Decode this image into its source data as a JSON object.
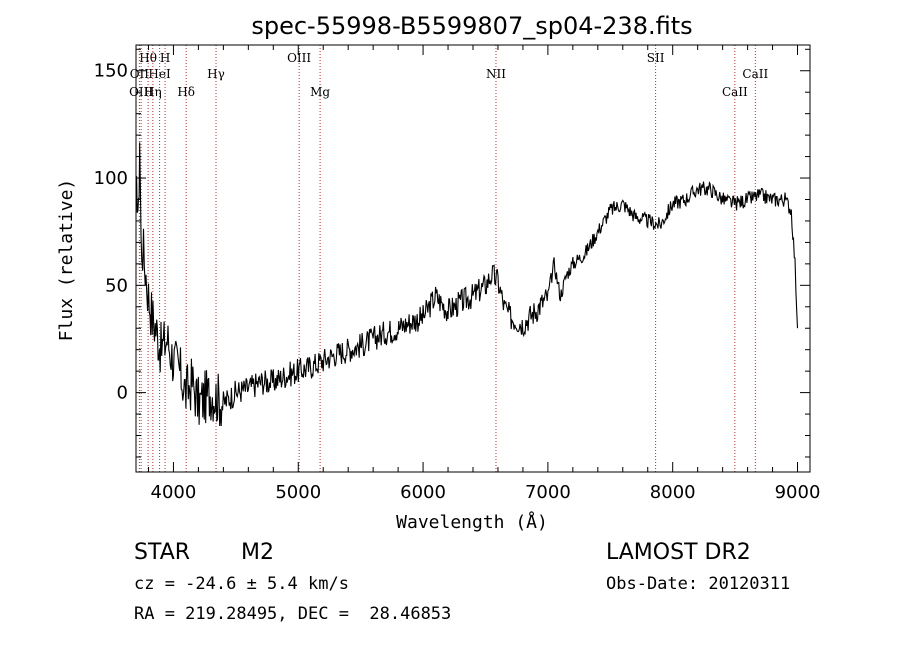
{
  "chart_data": {
    "type": "line",
    "title": "spec-55998-B5599807_sp04-238.fits",
    "xlabel": "Wavelength (Å)",
    "ylabel": "Flux (relative)",
    "xlim": [
      3700,
      9100
    ],
    "ylim": [
      -37,
      162
    ],
    "x_ticks": [
      4000,
      5000,
      6000,
      7000,
      8000,
      9000
    ],
    "y_ticks": [
      0,
      50,
      100,
      150
    ],
    "grid": false,
    "series": [
      {
        "x": [
          3700,
          3710,
          3720,
          3730,
          3740,
          3760,
          3780,
          3800,
          3830,
          3860,
          3900,
          3950,
          4000,
          4050,
          4100,
          4150,
          4200,
          4300,
          4400,
          4500,
          4600,
          4700,
          4800,
          4900,
          5000,
          5100,
          5200,
          5300,
          5400,
          5500,
          5600,
          5700,
          5800,
          5900,
          6000,
          6050,
          6100,
          6200,
          6300,
          6400,
          6500,
          6550,
          6600,
          6650,
          6700,
          6800,
          6900,
          7000,
          7050,
          7100,
          7150,
          7200,
          7300,
          7400,
          7450,
          7500,
          7600,
          7700,
          7800,
          7900,
          8000,
          8100,
          8200,
          8300,
          8400,
          8500,
          8600,
          8700,
          8800,
          8900,
          8950,
          8980,
          9000
        ],
        "y": [
          85,
          95,
          80,
          120,
          70,
          65,
          55,
          45,
          35,
          30,
          20,
          25,
          15,
          10,
          0,
          5,
          -5,
          0,
          -5,
          0,
          2,
          5,
          5,
          8,
          10,
          12,
          15,
          18,
          20,
          22,
          25,
          28,
          30,
          33,
          35,
          40,
          45,
          38,
          42,
          45,
          50,
          55,
          52,
          40,
          35,
          32,
          38,
          45,
          60,
          45,
          55,
          60,
          65,
          75,
          80,
          85,
          88,
          82,
          80,
          78,
          88,
          90,
          95,
          95,
          90,
          88,
          90,
          92,
          90,
          90,
          85,
          60,
          30
        ]
      }
    ],
    "lines": [
      {
        "name": "Hθ",
        "x": 3797,
        "row": 1
      },
      {
        "name": "H",
        "x": 3933,
        "row": 1
      },
      {
        "name": "OIII",
        "x": 5007,
        "row": 1
      },
      {
        "name": "SII",
        "x": 7863,
        "row": 1
      },
      {
        "name": "OII",
        "x": 3727,
        "row": 2
      },
      {
        "name": "HeI",
        "x": 3889,
        "row": 2
      },
      {
        "name": "Hγ",
        "x": 4341,
        "row": 2
      },
      {
        "name": "NII",
        "x": 6584,
        "row": 2
      },
      {
        "name": "CaII",
        "x": 8662,
        "row": 2
      },
      {
        "name": "OIII",
        "x": 3741,
        "row": 3
      },
      {
        "name": "Hη",
        "x": 3835,
        "row": 3
      },
      {
        "name": "Hδ",
        "x": 4102,
        "row": 3
      },
      {
        "name": "Mg",
        "x": 5175,
        "row": 3
      },
      {
        "name": "CaII",
        "x": 8498,
        "row": 3
      }
    ]
  },
  "footer": {
    "class_label": "STAR",
    "subclass": "M2",
    "survey": "LAMOST DR2",
    "cz": "cz = -24.6 ± 5.4 km/s",
    "obs_date": "Obs-Date: 20120311",
    "radec": "RA = 219.28495, DEC =  28.46853"
  }
}
